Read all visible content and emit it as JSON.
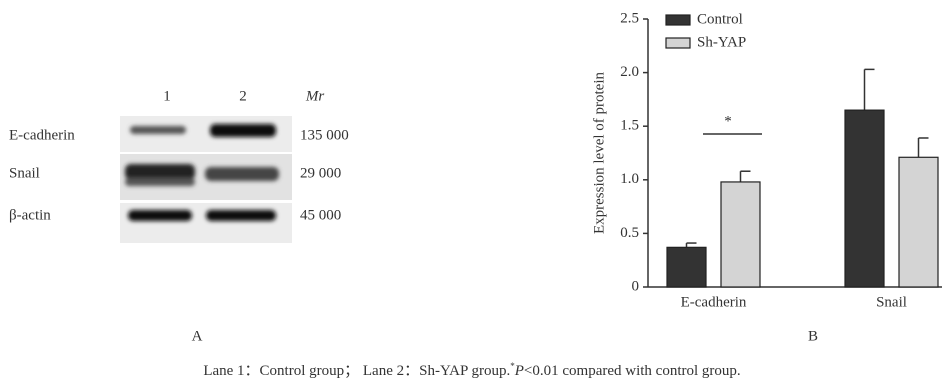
{
  "blot": {
    "lanes": [
      "1",
      "2"
    ],
    "mr_label": "Mr",
    "rows": [
      {
        "name": "E-cadherin",
        "mr": "135 000"
      },
      {
        "name": "Snail",
        "mr": "29 000"
      },
      {
        "name": "β-actin",
        "mr": "45 000"
      }
    ],
    "panel_label": "A"
  },
  "chart_data": {
    "type": "bar",
    "ylabel": "Expression level of protein",
    "categories": [
      "E-cadherin",
      "Snail"
    ],
    "series": [
      {
        "name": "Control",
        "color": "#333333",
        "values": [
          0.37,
          1.65
        ],
        "errors": [
          0.04,
          0.38
        ]
      },
      {
        "name": "Sh-YAP",
        "color": "#d4d4d4",
        "values": [
          0.98,
          1.21
        ],
        "errors": [
          0.1,
          0.18
        ]
      }
    ],
    "ylim": [
      0,
      2.5
    ],
    "yticks": [
      0,
      0.5,
      {
        "value": 1,
        "label": "1.0"
      },
      1.5,
      {
        "value": 2,
        "label": "2.0"
      },
      2.5
    ],
    "annotation": "*",
    "panel_label": "B"
  },
  "caption": {
    "lead": "Lane 1：Control group； Lane 2：Sh-YAP group.",
    "mark": "*",
    "p": "P",
    "rest": "<0.01 compared with control group."
  }
}
